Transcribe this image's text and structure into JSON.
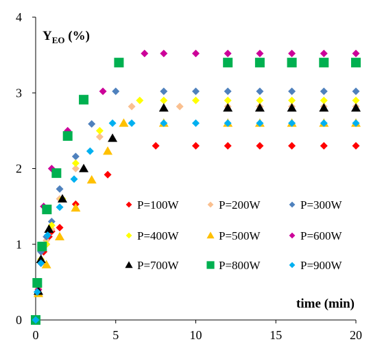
{
  "chart_data": {
    "type": "scatter",
    "title": "",
    "ylabel": {
      "main": "Y",
      "sub": "EO",
      "suffix": " (%)"
    },
    "xlabel": "time (min)",
    "xlim": [
      0,
      20
    ],
    "ylim": [
      0,
      4
    ],
    "xticks": [
      0,
      5,
      10,
      15,
      20
    ],
    "yticks": [
      0,
      1,
      2,
      3,
      4
    ],
    "grid": false,
    "legend_position": "inside-bottom-right",
    "series": [
      {
        "name": "P=100W",
        "color": "#ff0000",
        "marker": "diamond",
        "x": [
          0,
          0.17,
          0.33,
          0.5,
          0.67,
          0.83,
          1,
          1.5,
          2.5,
          4.5,
          7.5,
          10,
          12,
          14,
          16,
          18,
          20
        ],
        "y": [
          0,
          0.4,
          0.75,
          0.9,
          1.0,
          1.1,
          1.17,
          1.22,
          1.53,
          1.92,
          2.3,
          2.3,
          2.3,
          2.3,
          2.3,
          2.3,
          2.3
        ]
      },
      {
        "name": "P=200W",
        "color": "#fac090",
        "marker": "diamond",
        "x": [
          0,
          0.17,
          0.33,
          0.67,
          1,
          1.5,
          2.5,
          4,
          6,
          9,
          12,
          14,
          16,
          18,
          20
        ],
        "y": [
          0,
          0.42,
          0.8,
          1.05,
          1.2,
          1.6,
          2.0,
          2.42,
          2.82,
          2.82,
          2.82,
          2.82,
          2.82,
          2.82,
          2.82
        ]
      },
      {
        "name": "P=300W",
        "color": "#4f81bd",
        "marker": "diamond",
        "x": [
          0,
          0.17,
          0.33,
          0.67,
          1,
          1.5,
          2.5,
          3.5,
          5,
          8,
          10,
          12,
          14,
          16,
          18,
          20
        ],
        "y": [
          0,
          0.45,
          0.9,
          1.1,
          1.3,
          1.73,
          2.16,
          2.59,
          3.02,
          3.02,
          3.02,
          3.02,
          3.02,
          3.02,
          3.02,
          3.02
        ]
      },
      {
        "name": "P=400W",
        "color": "#ffff00",
        "marker": "diamond",
        "x": [
          0,
          0.17,
          0.33,
          0.67,
          1,
          1.67,
          2.5,
          4,
          6.5,
          8,
          10,
          12,
          14,
          16,
          18,
          20
        ],
        "y": [
          0,
          0.4,
          0.8,
          1.0,
          1.25,
          1.6,
          2.07,
          2.5,
          2.9,
          2.9,
          2.9,
          2.9,
          2.9,
          2.9,
          2.9,
          2.9
        ]
      },
      {
        "name": "P=500W",
        "color": "#ffc000",
        "marker": "triangle",
        "x": [
          0,
          0.17,
          0.33,
          0.67,
          1.5,
          2.5,
          3.5,
          4.5,
          5.5,
          8,
          12,
          14,
          16,
          18,
          20
        ],
        "y": [
          0,
          0.35,
          0.8,
          0.73,
          1.1,
          1.48,
          1.85,
          2.23,
          2.6,
          2.6,
          2.6,
          2.6,
          2.6,
          2.6,
          2.6
        ]
      },
      {
        "name": "P=600W",
        "color": "#cc0099",
        "marker": "diamond",
        "x": [
          0,
          0.17,
          0.5,
          1,
          2,
          4.2,
          6.8,
          8,
          10,
          12,
          14,
          16,
          18,
          20
        ],
        "y": [
          0,
          0.4,
          1.5,
          2.0,
          2.5,
          3.02,
          3.52,
          3.52,
          3.52,
          3.52,
          3.52,
          3.52,
          3.52,
          3.52
        ]
      },
      {
        "name": "P=700W",
        "color": "#000000",
        "marker": "triangle",
        "x": [
          0,
          0.17,
          0.33,
          0.83,
          1.67,
          3,
          4.8,
          8,
          12,
          14,
          16,
          18,
          20
        ],
        "y": [
          0,
          0.38,
          0.8,
          1.2,
          1.6,
          2.0,
          2.4,
          2.8,
          2.8,
          2.8,
          2.8,
          2.8,
          2.8
        ]
      },
      {
        "name": "P=800W",
        "color": "#00b050",
        "marker": "square",
        "x": [
          0,
          0.1,
          0.4,
          0.7,
          1.3,
          2,
          3,
          5.2,
          12,
          14,
          16,
          18,
          20
        ],
        "y": [
          0,
          0.49,
          0.97,
          1.46,
          1.94,
          2.43,
          2.91,
          3.4,
          3.4,
          3.4,
          3.4,
          3.4,
          3.4
        ]
      },
      {
        "name": "P=900W",
        "color": "#00b0f0",
        "marker": "diamond",
        "x": [
          0,
          0.1,
          0.33,
          0.75,
          1.5,
          2.4,
          3.4,
          4.8,
          6,
          8,
          10,
          12,
          14,
          16,
          18,
          20
        ],
        "y": [
          0,
          0.37,
          0.75,
          1.12,
          1.49,
          1.86,
          2.23,
          2.6,
          2.6,
          2.6,
          2.6,
          2.6,
          2.6,
          2.6,
          2.6,
          2.6
        ]
      }
    ]
  }
}
